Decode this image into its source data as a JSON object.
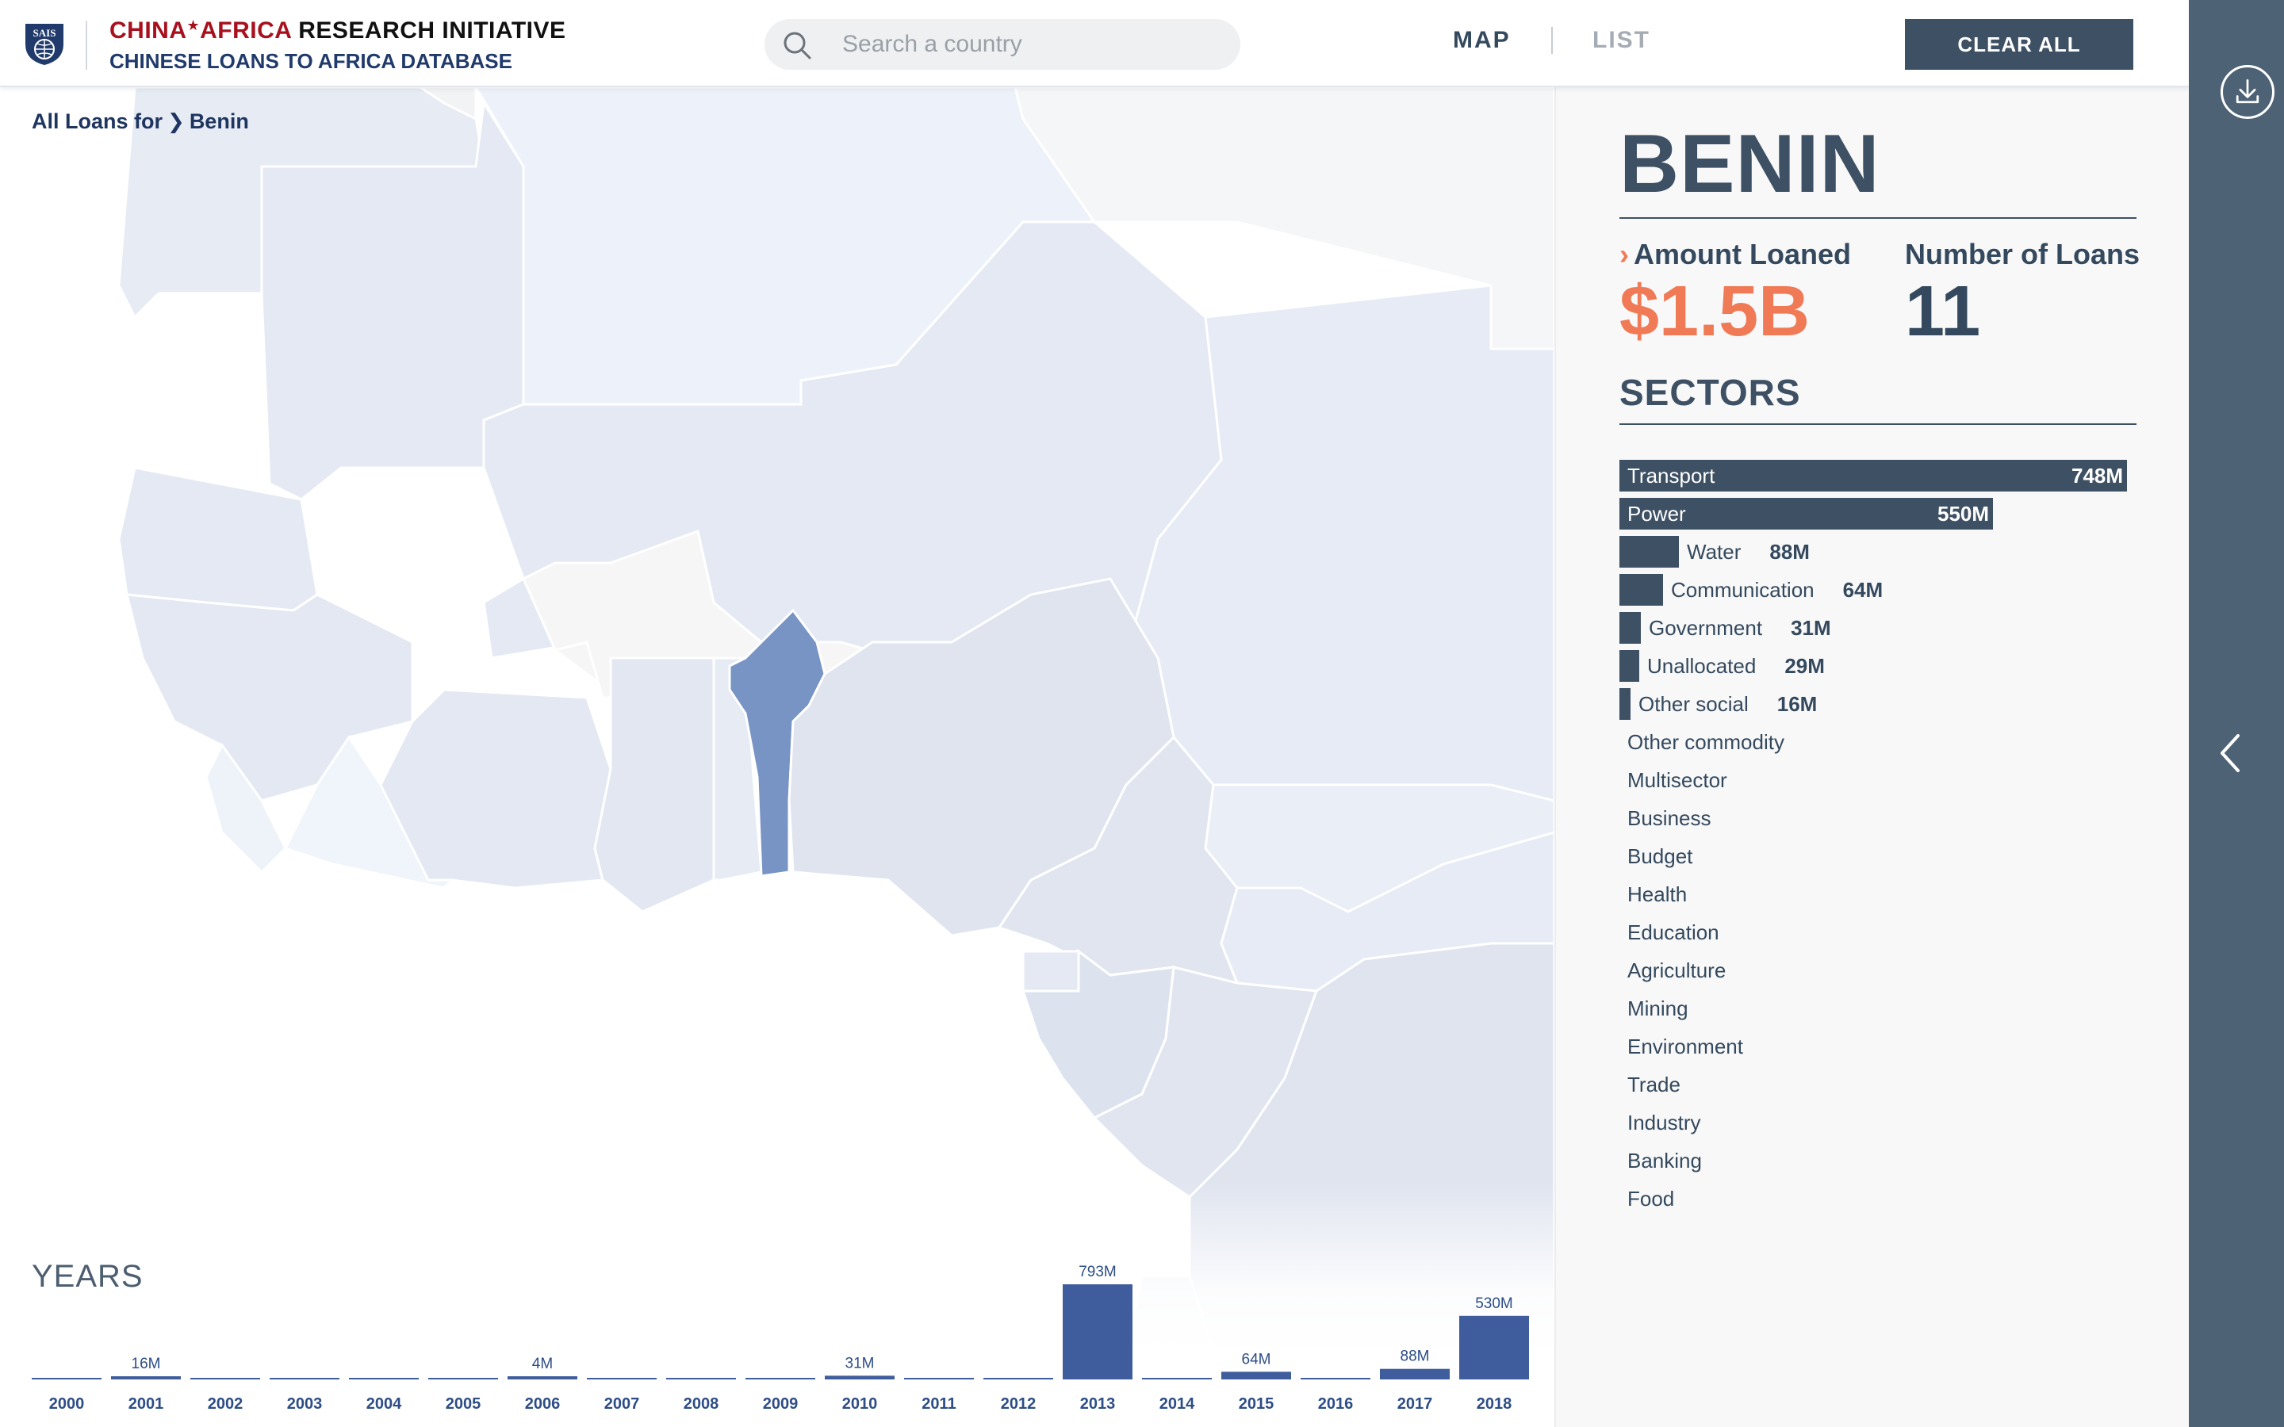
{
  "header": {
    "brand_part1": "CHINA",
    "brand_part2": "AFRICA",
    "brand_part3": "RESEARCH INITIATIVE",
    "subtitle": "CHINESE LOANS TO AFRICA DATABASE",
    "logo_text": "SAIS",
    "search_placeholder": "Search a country",
    "nav_map": "MAP",
    "nav_list": "LIST",
    "clear_all": "CLEAR ALL"
  },
  "breadcrumb": {
    "prefix": "All Loans for",
    "country": "Benin"
  },
  "panel": {
    "country": "BENIN",
    "amount_label": "Amount Loaned",
    "amount_value": "$1.5B",
    "count_label": "Number of Loans",
    "count_value": "11",
    "sectors_title": "SECTORS"
  },
  "sectors": [
    {
      "name": "Transport",
      "value": 748,
      "label": "748M"
    },
    {
      "name": "Power",
      "value": 550,
      "label": "550M"
    },
    {
      "name": "Water",
      "value": 88,
      "label": "88M"
    },
    {
      "name": "Communication",
      "value": 64,
      "label": "64M"
    },
    {
      "name": "Government",
      "value": 31,
      "label": "31M"
    },
    {
      "name": "Unallocated",
      "value": 29,
      "label": "29M"
    },
    {
      "name": "Other social",
      "value": 16,
      "label": "16M"
    },
    {
      "name": "Other commodity",
      "value": 0,
      "label": ""
    },
    {
      "name": "Multisector",
      "value": 0,
      "label": ""
    },
    {
      "name": "Business",
      "value": 0,
      "label": ""
    },
    {
      "name": "Budget",
      "value": 0,
      "label": ""
    },
    {
      "name": "Health",
      "value": 0,
      "label": ""
    },
    {
      "name": "Education",
      "value": 0,
      "label": ""
    },
    {
      "name": "Agriculture",
      "value": 0,
      "label": ""
    },
    {
      "name": "Mining",
      "value": 0,
      "label": ""
    },
    {
      "name": "Environment",
      "value": 0,
      "label": ""
    },
    {
      "name": "Trade",
      "value": 0,
      "label": ""
    },
    {
      "name": "Industry",
      "value": 0,
      "label": ""
    },
    {
      "name": "Banking",
      "value": 0,
      "label": ""
    },
    {
      "name": "Food",
      "value": 0,
      "label": ""
    }
  ],
  "chart_data": {
    "type": "bar",
    "title": "YEARS",
    "categories": [
      "2000",
      "2001",
      "2002",
      "2003",
      "2004",
      "2005",
      "2006",
      "2007",
      "2008",
      "2009",
      "2010",
      "2011",
      "2012",
      "2013",
      "2014",
      "2015",
      "2016",
      "2017",
      "2018"
    ],
    "values": [
      0,
      16,
      0,
      0,
      0,
      0,
      4,
      0,
      0,
      0,
      31,
      0,
      0,
      793,
      0,
      64,
      0,
      88,
      530
    ],
    "data_labels": [
      "",
      "16M",
      "",
      "",
      "",
      "",
      "4M",
      "",
      "",
      "",
      "31M",
      "",
      "",
      "793M",
      "",
      "64M",
      "",
      "88M",
      "530M"
    ],
    "bar_color": "#3f5d9c"
  },
  "map": {
    "selected_country": "Benin",
    "selected_color": "#7794c5"
  },
  "colors": {
    "accent": "#f07a56",
    "dark": "#3e5063",
    "rail": "#4e6276"
  },
  "icons": {
    "search": "search-icon",
    "download": "download-icon",
    "collapse": "chevron-left-icon",
    "logo": "shield-logo-icon"
  }
}
